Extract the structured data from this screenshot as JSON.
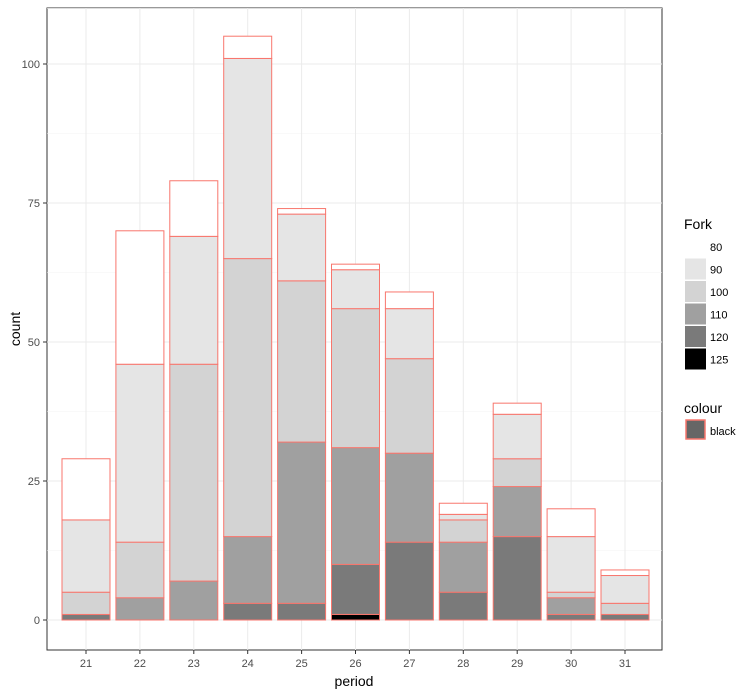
{
  "chart_data": {
    "type": "bar",
    "stacked": true,
    "xlabel": "period",
    "ylabel": "count",
    "categories": [
      "21",
      "22",
      "23",
      "24",
      "25",
      "26",
      "27",
      "28",
      "29",
      "30",
      "31"
    ],
    "ylim": [
      0,
      110
    ],
    "yticks": [
      0,
      25,
      50,
      75,
      100
    ],
    "grid": true,
    "series": [
      {
        "name": "125",
        "color": "#000000",
        "values": [
          0,
          0,
          0,
          0,
          0,
          1,
          0,
          0,
          0,
          0,
          0
        ]
      },
      {
        "name": "120",
        "color": "#7a7a7a",
        "values": [
          1,
          0,
          0,
          3,
          3,
          9,
          14,
          5,
          15,
          1,
          1
        ]
      },
      {
        "name": "110",
        "color": "#a0a0a0",
        "values": [
          0,
          4,
          7,
          12,
          29,
          21,
          16,
          9,
          9,
          3,
          0
        ]
      },
      {
        "name": "100",
        "color": "#d3d3d3",
        "values": [
          4,
          10,
          39,
          50,
          29,
          25,
          17,
          4,
          5,
          1,
          2
        ]
      },
      {
        "name": "90",
        "color": "#e5e5e5",
        "values": [
          13,
          32,
          23,
          36,
          12,
          7,
          9,
          1,
          8,
          10,
          5
        ]
      },
      {
        "name": "80",
        "color": "#ffffff",
        "values": [
          11,
          24,
          10,
          4,
          1,
          1,
          3,
          2,
          2,
          5,
          1
        ]
      }
    ],
    "legend": {
      "title": "Fork",
      "placement": "right"
    },
    "legend2": {
      "title": "colour",
      "entries": [
        "black"
      ],
      "swatch_color": "#666666",
      "outline_color": "#f8766d"
    }
  }
}
